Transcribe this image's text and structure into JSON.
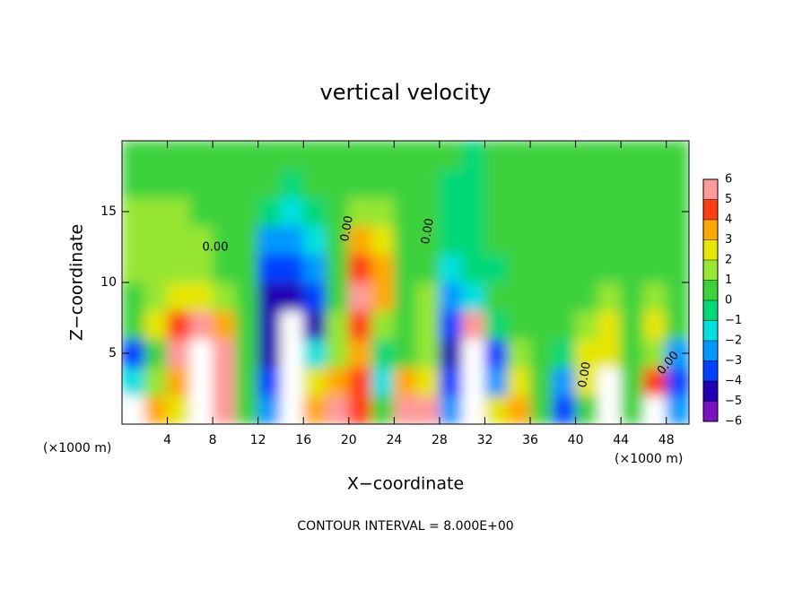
{
  "chart_data": {
    "type": "heatmap",
    "title": "vertical velocity",
    "x_label": "X−coordinate",
    "y_label": "Z−coordinate",
    "x_unit_left": "(×1000 m)",
    "x_unit_right": "(×1000 m)",
    "footer": "CONTOUR INTERVAL = 8.000E+00",
    "annotations": [
      "0.00",
      "0.00",
      "0.00",
      "0.00",
      "0.00"
    ],
    "xlim": [
      0,
      50
    ],
    "ylim": [
      0,
      20
    ],
    "xticks": [
      4,
      8,
      12,
      16,
      20,
      24,
      28,
      32,
      36,
      40,
      44,
      48
    ],
    "yticks": [
      5,
      10,
      15
    ],
    "x": [
      1,
      3,
      5,
      7,
      9,
      11,
      13,
      15,
      17,
      19,
      21,
      23,
      25,
      27,
      29,
      31,
      33,
      35,
      37,
      39,
      41,
      43,
      45,
      47,
      49
    ],
    "y": [
      1,
      3,
      5,
      7,
      9,
      11,
      13,
      15,
      17,
      19
    ],
    "z": [
      [
        6,
        3,
        2,
        8,
        5,
        0,
        -3,
        8,
        3,
        5,
        4,
        0,
        5,
        5,
        -3,
        8,
        2,
        3,
        0,
        -4,
        0,
        6,
        0,
        6,
        -3
      ],
      [
        -2,
        1,
        3,
        8,
        5,
        0,
        -4,
        8,
        2,
        3,
        4,
        -2,
        3,
        2,
        -4,
        8,
        -3,
        2,
        0,
        -3,
        2,
        8,
        0,
        4,
        -4
      ],
      [
        -4,
        0,
        5,
        7,
        5,
        0,
        -5,
        8,
        -2,
        1,
        3,
        -1,
        0,
        1,
        -5,
        8,
        -4,
        1,
        0,
        -1,
        2,
        2,
        0,
        1,
        -3
      ],
      [
        0,
        2,
        4,
        5,
        3,
        0,
        -5,
        8,
        -5,
        1,
        4,
        1,
        0,
        1,
        -4,
        5,
        -1,
        0,
        0,
        0,
        1,
        2,
        0,
        2,
        0
      ],
      [
        0,
        1,
        2,
        2,
        1,
        0,
        -5,
        -5,
        -4,
        0,
        5,
        3,
        0,
        1,
        -3,
        -2,
        0,
        0,
        0,
        0,
        0,
        1,
        0,
        1,
        0
      ],
      [
        1,
        1,
        1,
        1,
        0,
        0,
        -4,
        -4,
        -3,
        0,
        4,
        3,
        0,
        0,
        -2,
        -1,
        -1,
        0,
        0,
        0,
        0,
        0,
        0,
        0,
        0
      ],
      [
        1,
        1,
        1,
        1,
        0,
        0,
        -3,
        -3,
        -2,
        0,
        3,
        2,
        0,
        0,
        -1,
        -1,
        0,
        0,
        0,
        0,
        0,
        0,
        0,
        0,
        0
      ],
      [
        1,
        1,
        1,
        0,
        0,
        0,
        -1,
        -2,
        -1,
        0,
        1,
        1,
        0,
        0,
        -1,
        -1,
        0,
        0,
        0,
        0,
        0,
        0,
        0,
        0,
        0
      ],
      [
        0,
        0,
        0,
        0,
        0,
        0,
        0,
        -1,
        0,
        0,
        0,
        0,
        0,
        0,
        -1,
        -1,
        0,
        0,
        0,
        0,
        0,
        0,
        0,
        0,
        0
      ],
      [
        0,
        0,
        0,
        0,
        0,
        0,
        0,
        0,
        0,
        0,
        0,
        0,
        0,
        0,
        0,
        -1,
        0,
        0,
        0,
        0,
        0,
        0,
        0,
        0,
        0
      ]
    ],
    "clim": [
      -6,
      6
    ],
    "colorbar_ticks": [
      6,
      5,
      4,
      3,
      2,
      1,
      0,
      {
        "value": -1,
        "label": "−1"
      },
      {
        "value": -2,
        "label": "−2"
      },
      {
        "value": -3,
        "label": "−3"
      },
      {
        "value": -4,
        "label": "−4"
      },
      {
        "value": -5,
        "label": "−5"
      },
      {
        "value": -6,
        "label": "−6"
      }
    ],
    "colors": [
      "#7a10c0",
      "#2000b0",
      "#0040ff",
      "#0098ff",
      "#00e0e0",
      "#00d878",
      "#3cd23c",
      "#96e632",
      "#e6e600",
      "#ffa800",
      "#ff3c14",
      "#ff9a9a"
    ],
    "over_color": "#ffffff"
  }
}
